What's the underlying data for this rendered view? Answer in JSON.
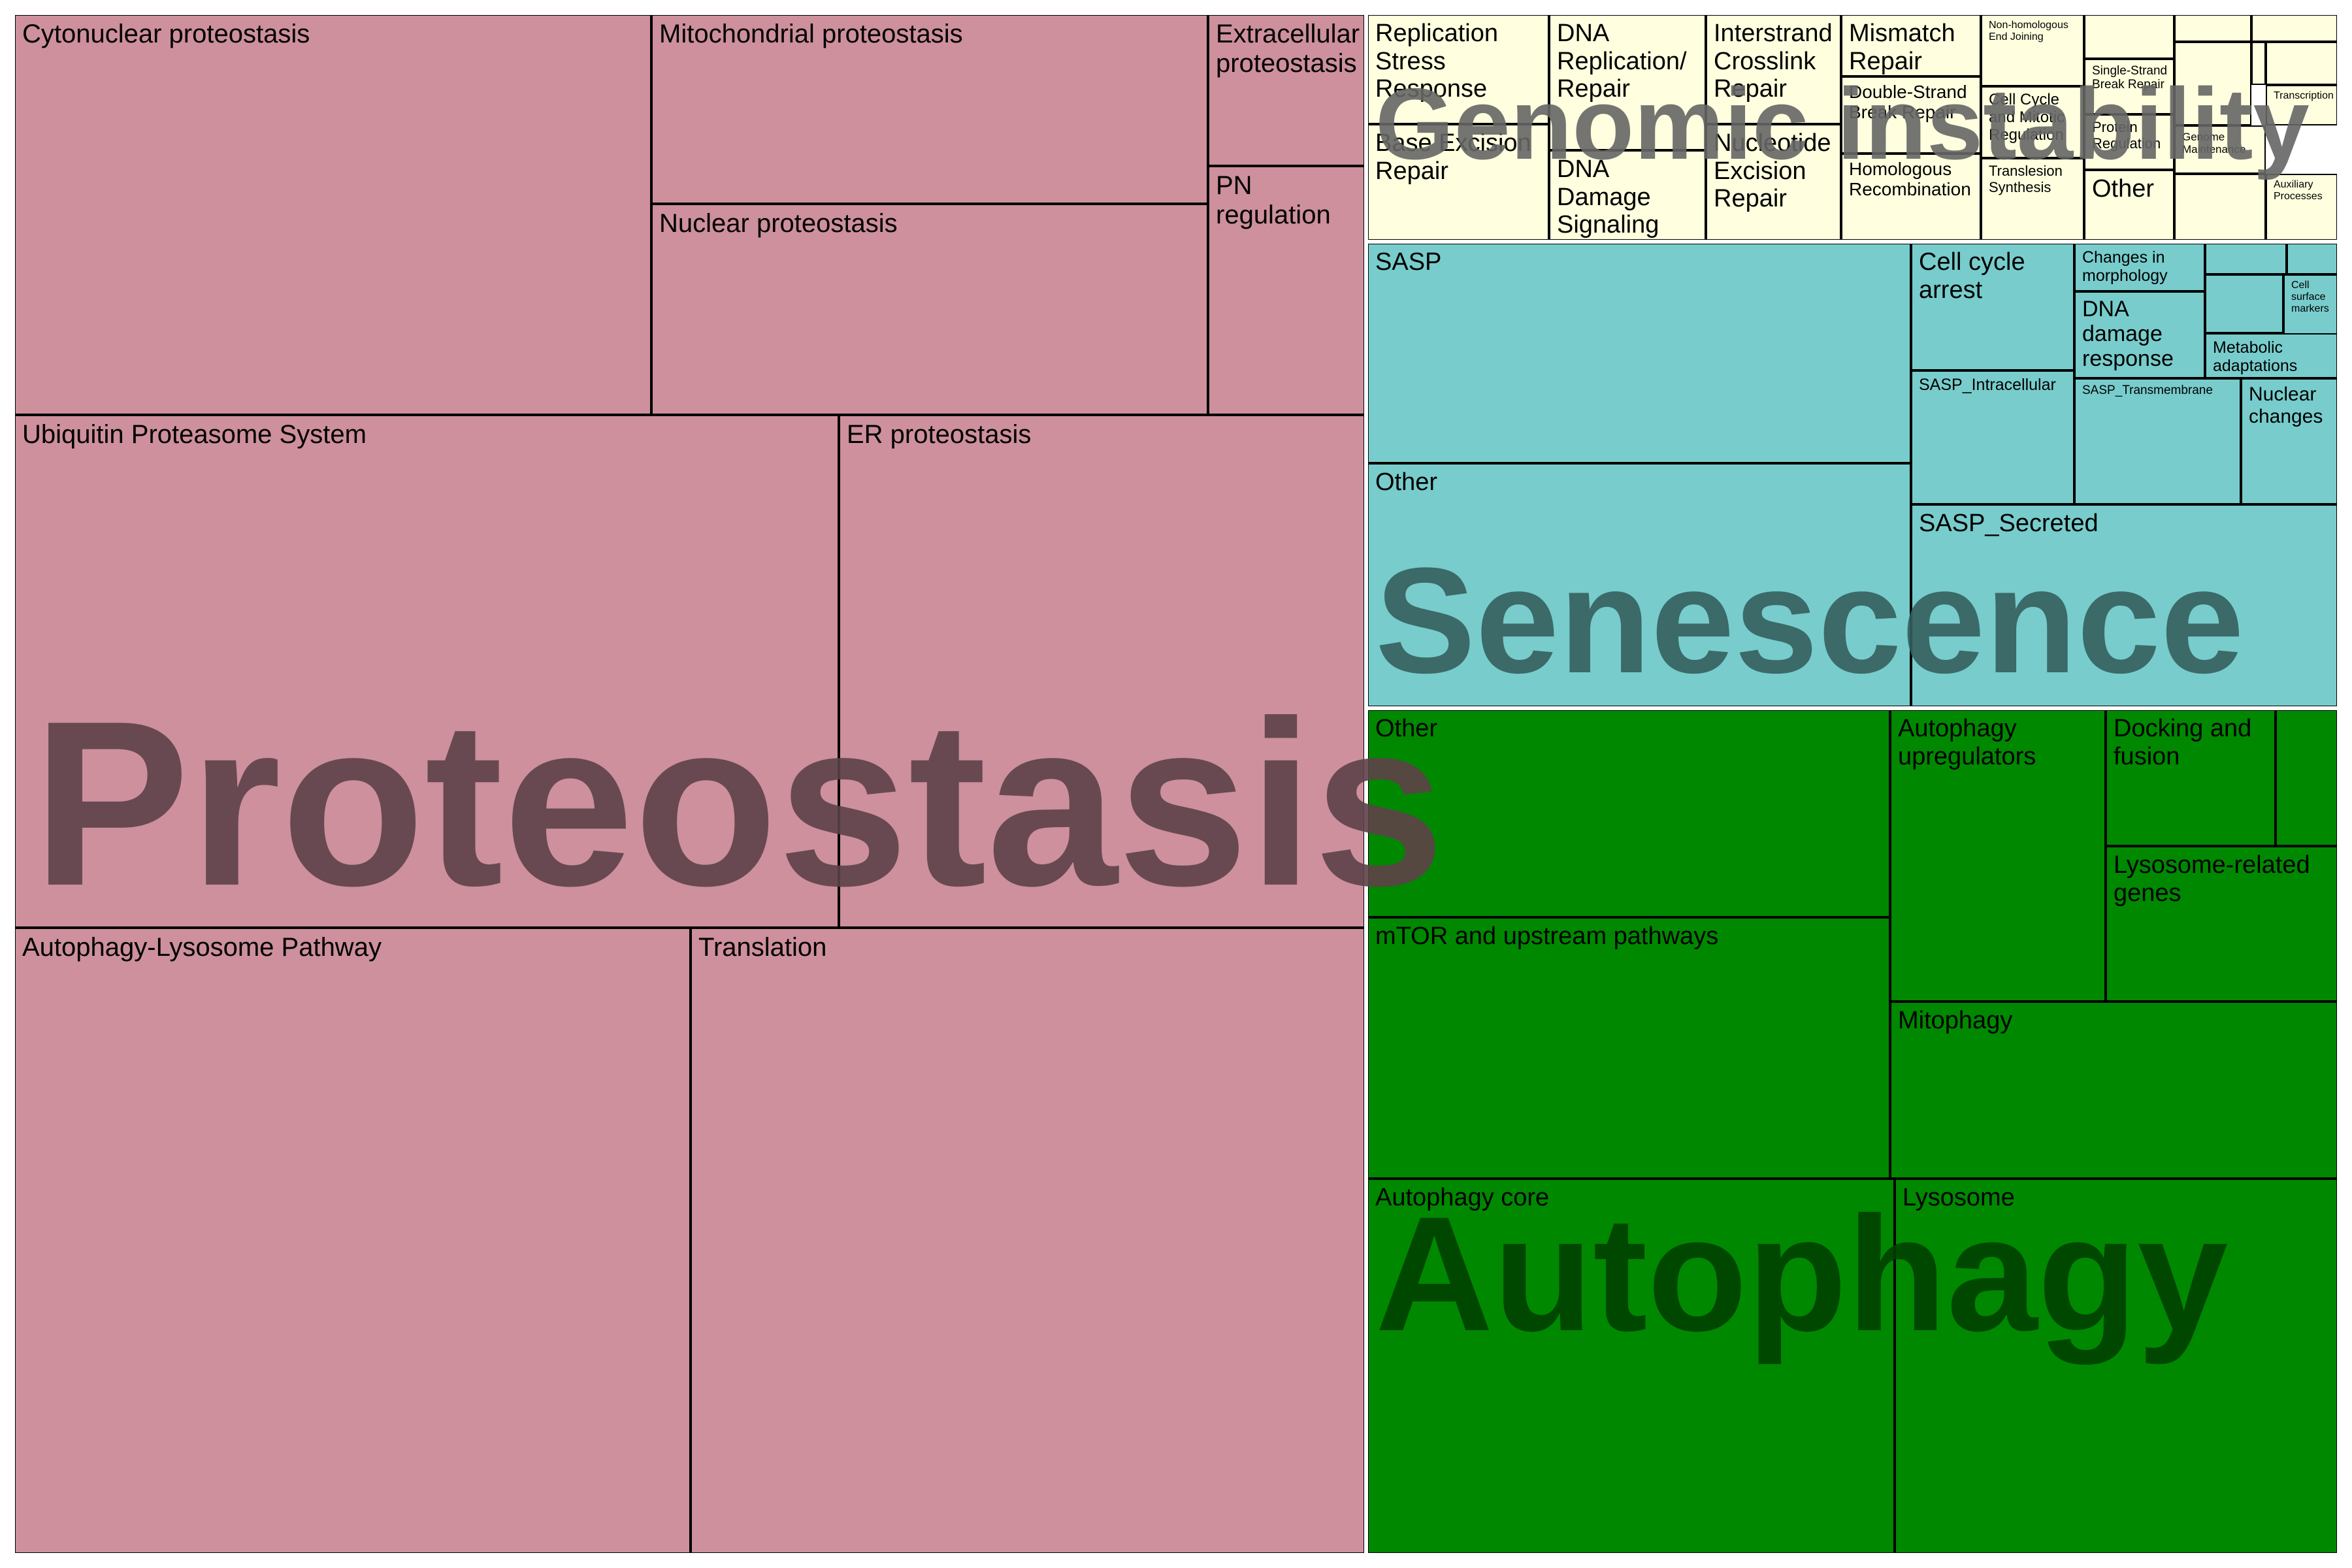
{
  "chart_data": {
    "type": "treemap",
    "groups": [
      {
        "name": "Proteostasis",
        "color": "#cd909c",
        "label_color": "#5e4249",
        "children": [
          "Cytonuclear proteostasis",
          "Mitochondrial proteostasis",
          "Extracellular proteostasis",
          "PN regulation",
          "Nuclear proteostasis",
          "Ubiquitin Proteasome System",
          "ER proteostasis",
          "Autophagy-Lysosome Pathway",
          "Translation"
        ]
      },
      {
        "name": "Genomic instability",
        "color": "#ffffdf",
        "label_color": "#666666",
        "children": [
          "Replication Stress Response",
          "Base Excision Repair",
          "DNA Replication/ Repair",
          "DNA Damage Signaling",
          "Interstrand Crosslink Repair",
          "Nucleotide Excision Repair",
          "Mismatch Repair",
          "Double-Strand Break Repair",
          "Homologous Recombination",
          "Non-homologous End Joining",
          "Cell Cycle and Mitotic Regulation",
          "Translesion Synthesis",
          "Single-Strand Break Repair",
          "Protein Regulation",
          "Other",
          "Genome Maintenance",
          "Transcription",
          "Auxiliary Processes"
        ]
      },
      {
        "name": "Senescence",
        "color": "#78cccc",
        "label_color": "#35605e",
        "children": [
          "SASP",
          "Cell cycle arrest",
          "Changes in morphology",
          "Cell surface markers",
          "DNA damage response",
          "Metabolic adaptations",
          "SASP_Intracellular",
          "SASP_Transmembrane",
          "Nuclear changes",
          "Other",
          "SASP_Secreted"
        ]
      },
      {
        "name": "Autophagy",
        "color": "#008800",
        "label_color": "#004000",
        "children": [
          "Other",
          "Autophagy upregulators",
          "Docking and fusion",
          "Lysosome-related genes",
          "mTOR and upstream pathways",
          "Mitophagy",
          "Autophagy core",
          "Lysosome"
        ]
      }
    ]
  }
}
